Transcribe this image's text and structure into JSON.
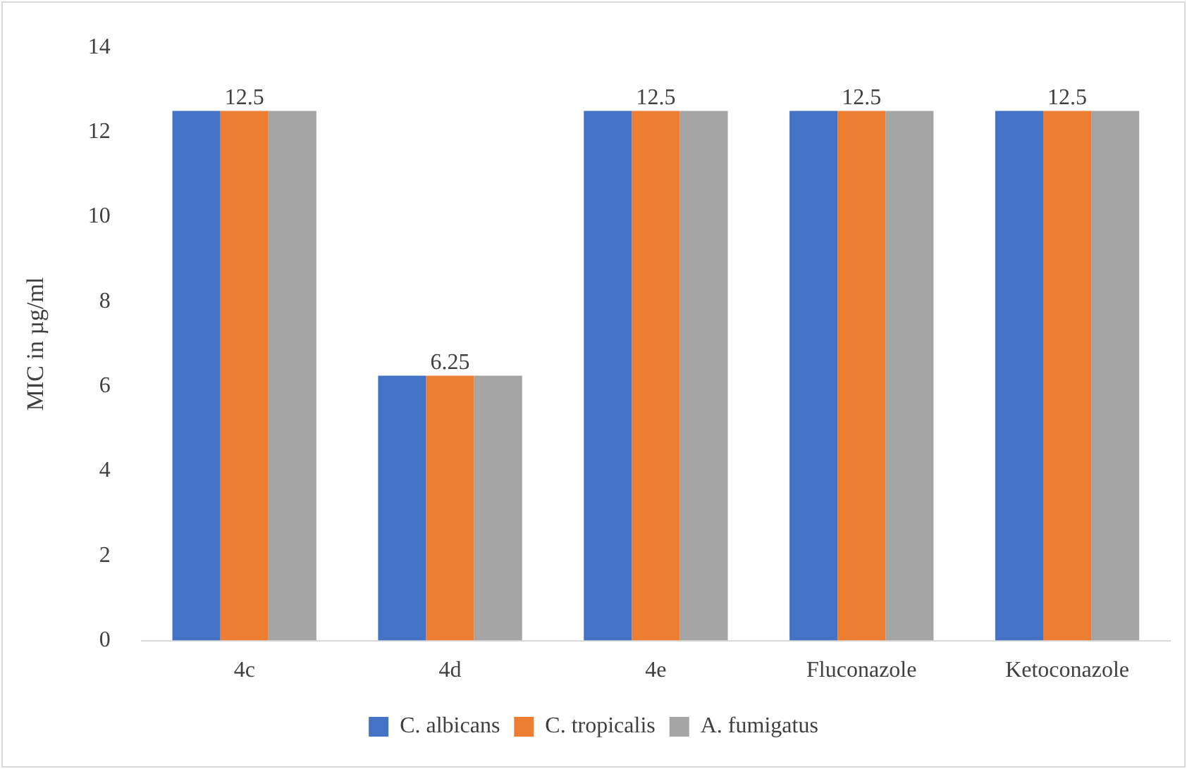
{
  "chart_data": {
    "type": "bar",
    "ylabel": "MIC in µg/ml",
    "categories": [
      "4c",
      "4d",
      "4e",
      "Fluconazole",
      "Ketoconazole"
    ],
    "series": [
      {
        "name": "C. albicans",
        "color": "#4472c4",
        "values": [
          12.5,
          6.25,
          12.5,
          12.5,
          12.5
        ]
      },
      {
        "name": "C. tropicalis",
        "color": "#ed7d31",
        "values": [
          12.5,
          6.25,
          12.5,
          12.5,
          12.5
        ],
        "value_labels": [
          "12.5",
          "6.25",
          "12.5",
          "12.5",
          "12.5"
        ]
      },
      {
        "name": "A. fumigatus",
        "color": "#a5a5a5",
        "values": [
          12.5,
          6.25,
          12.5,
          12.5,
          12.5
        ]
      }
    ],
    "ylim": [
      0,
      14
    ],
    "yticks": [
      0,
      2,
      4,
      6,
      8,
      10,
      12,
      14
    ],
    "grid": false,
    "legend": "bottom"
  }
}
